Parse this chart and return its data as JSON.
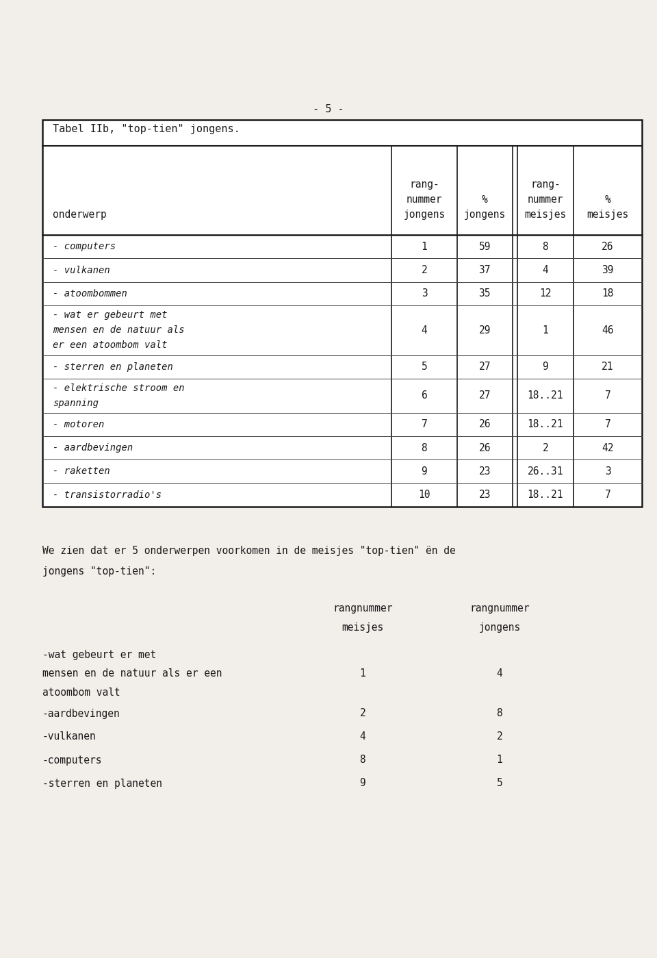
{
  "page_number": "- 5 -",
  "table_title": "Tabel IIb, \"top-tien\" jongens.",
  "col_headers_line1": [
    "",
    "rang-",
    "%",
    "rang-",
    "%"
  ],
  "col_headers_line2": [
    "",
    "nummer",
    "jongens",
    "nummer",
    "meisjes"
  ],
  "col_headers_line3": [
    "onderwerp",
    "jongens",
    "",
    "meisjes",
    ""
  ],
  "rows": [
    [
      "- computers",
      "1",
      "59",
      "8",
      "26"
    ],
    [
      "- vulkanen",
      "2",
      "37",
      "4",
      "39"
    ],
    [
      "- atoombommen",
      "3",
      "35",
      "12",
      "18"
    ],
    [
      "- wat er gebeurt met|mensen en de natuur als|er een atoombom valt",
      "4",
      "29",
      "1",
      "46"
    ],
    [
      "- sterren en planeten",
      "5",
      "27",
      "9",
      "21"
    ],
    [
      "- elektrische stroom en|spanning",
      "6",
      "27",
      "18..21",
      "7"
    ],
    [
      "- motoren",
      "7",
      "26",
      "18..21",
      "7"
    ],
    [
      "- aardbevingen",
      "8",
      "26",
      "2",
      "42"
    ],
    [
      "- raketten",
      "9",
      "23",
      "26..31",
      "3"
    ],
    [
      "- transistorradio's",
      "10",
      "23",
      "18..21",
      "7"
    ]
  ],
  "paragraph_line1": "We zien dat er 5 onderwerpen voorkomen in de meisjes \"top-tien\" ën de",
  "paragraph_line2": "jongens \"top-tien\":",
  "st_hdr1_meisjes": "rangnummer",
  "st_hdr1_jongens": "rangnummer",
  "st_hdr2_meisjes": "meisjes",
  "st_hdr2_jongens": "jongens",
  "second_table_rows": [
    [
      "-wat gebeurt er met|mensen en de natuur als er een|atoombom valt",
      "1",
      "4"
    ],
    [
      "-aardbevingen",
      "2",
      "8"
    ],
    [
      "-vulkanen",
      "4",
      "2"
    ],
    [
      "-computers",
      "8",
      "1"
    ],
    [
      "-sterren en planeten",
      "9",
      "5"
    ]
  ],
  "bg_color": "#f2eeea",
  "text_color": "#1a1a1a"
}
